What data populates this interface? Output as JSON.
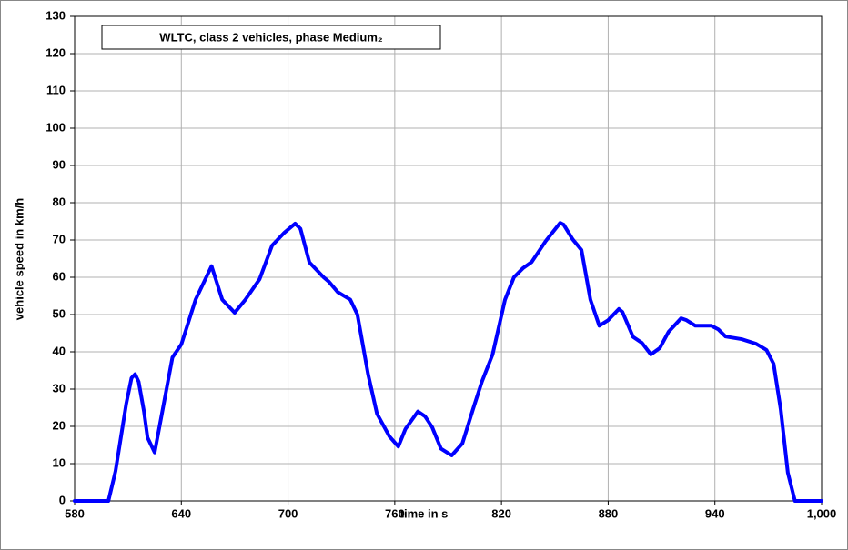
{
  "chart_data": {
    "type": "line",
    "title": "WLTC, class 2 vehicles, phase Medium₂",
    "x_label": "time in s",
    "y_label": "vehicle speed in km/h",
    "series": [
      {
        "name": "vehicle speed",
        "color": "#0000ff",
        "x": [
          580,
          599,
          603,
          606,
          609,
          612,
          614,
          616,
          619,
          621,
          625,
          635,
          640,
          648,
          657,
          663,
          670,
          676,
          684,
          691,
          698,
          704,
          707,
          712,
          720,
          723,
          728,
          735,
          739,
          745,
          750,
          757,
          762,
          766,
          773,
          777,
          781,
          786,
          792,
          798,
          804,
          809,
          815,
          822,
          827,
          832,
          837,
          845,
          853,
          855,
          860,
          865,
          870,
          875,
          880,
          886,
          888,
          894,
          899,
          904,
          909,
          914,
          921,
          924,
          929,
          938,
          942,
          946,
          955,
          963,
          969,
          973,
          977,
          981,
          985,
          1000
        ],
        "values": [
          0,
          0,
          8,
          17,
          26,
          33,
          34,
          32,
          24,
          17,
          13,
          38.5,
          42,
          54,
          63,
          54,
          50.5,
          54,
          59.5,
          68.5,
          72,
          74.4,
          73,
          64,
          60,
          58.8,
          56,
          54,
          50,
          34,
          23.4,
          17.3,
          14.6,
          19.3,
          24,
          22.7,
          19.8,
          14,
          12.2,
          15.4,
          24.6,
          32,
          39.3,
          54,
          60,
          62.4,
          64.1,
          69.8,
          74.6,
          74.1,
          70.2,
          67.3,
          54,
          47,
          48.5,
          51.5,
          50.7,
          44,
          42.4,
          39.3,
          41,
          45.4,
          49,
          48.5,
          47,
          47,
          46,
          44.1,
          43.4,
          42.2,
          40.5,
          36.8,
          24.6,
          7.6,
          0,
          0
        ]
      }
    ],
    "xlim": [
      580,
      1000
    ],
    "xticks": [
      580,
      640,
      700,
      760,
      820,
      880,
      940,
      {
        "value": 1000,
        "label": "1,000"
      }
    ],
    "ylim": [
      0,
      130
    ],
    "yticks": [
      0,
      10,
      20,
      30,
      40,
      50,
      60,
      70,
      80,
      90,
      100,
      110,
      120,
      130
    ],
    "grid": true
  }
}
